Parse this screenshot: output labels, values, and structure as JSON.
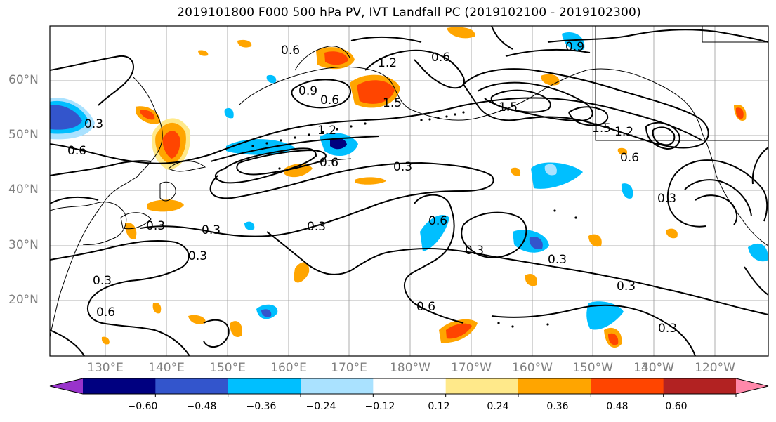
{
  "title": "2019101800 F000 500 hPa PV, IVT Landfall PC (2019102100 - 2019102300)",
  "lat_labels": [
    "60°N",
    "50°N",
    "40°N",
    "30°N",
    "20°N"
  ],
  "lon_labels": [
    "130°E",
    "140°E",
    "150°E",
    "160°E",
    "170°E",
    "180°W",
    "170°W",
    "160°W",
    "150°W",
    "140°W",
    "130°W",
    "120°W"
  ],
  "contour_labels": [
    "0.6",
    "0.9",
    "1.2",
    "0.6",
    "0.6",
    "0.9",
    "0.3",
    "0.6",
    "1.2",
    "1.5",
    "1.5",
    "1.5",
    "1.2",
    "0.6",
    "0.3",
    "0.6",
    "0.3",
    "0.3",
    "0.3",
    "0.3",
    "0.3",
    "0.6",
    "0.3",
    "0.6",
    "0.3",
    "0.3",
    "0.6",
    "0.3",
    "0.3"
  ],
  "colorbar": {
    "ticks": [
      "−0.60",
      "−0.48",
      "−0.36",
      "−0.24",
      "−0.12",
      "0.12",
      "0.24",
      "0.36",
      "0.48",
      "0.60"
    ],
    "colors": [
      "#9933cc",
      "#000080",
      "#3355cc",
      "#00bfff",
      "#aae2ff",
      "#ffffff",
      "#ffe98a",
      "#ffa500",
      "#ff4500",
      "#b22222",
      "#ff88aa"
    ]
  }
}
